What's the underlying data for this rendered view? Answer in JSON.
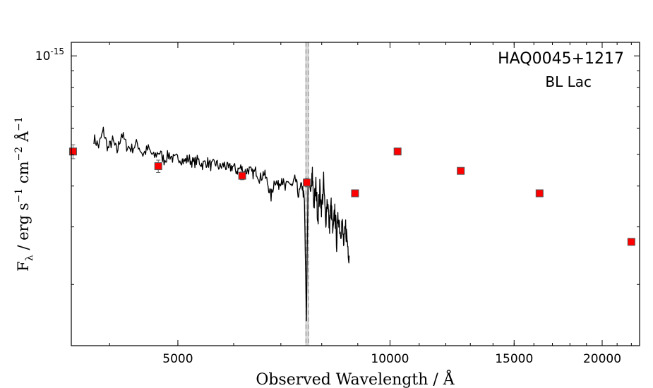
{
  "chart_data": {
    "type": "scatter",
    "title": "HAQ0045+1217",
    "subtitle": "BL Lac",
    "xlabel": "Observed Wavelength / Å",
    "ylabel_parts": {
      "f": "F",
      "lambda": "λ",
      "rest1": " / erg s",
      "exp1": "−1",
      "rest2": " cm",
      "exp2": "−2",
      "rest3": " Å",
      "exp3": "−1"
    },
    "x_scale": "log",
    "y_scale": "log",
    "xlim": [
      3530,
      22600
    ],
    "ylim": [
      1.3e-16,
      1.1e-15
    ],
    "x_ticks": [
      {
        "value": 5000,
        "label": "5000"
      },
      {
        "value": 10000,
        "label": "10000"
      },
      {
        "value": 15000,
        "label": "15000"
      },
      {
        "value": 20000,
        "label": "20000"
      }
    ],
    "y_ticks": [
      {
        "value": 1e-15,
        "label_base": "10",
        "label_exp": "-15"
      }
    ],
    "vertical_band": {
      "x_min": 7580,
      "x_max": 7680,
      "dashed_lines": [
        7600,
        7660
      ],
      "color": "#d9d9d9"
    },
    "series": [
      {
        "kind": "spectrum",
        "color": "#000000",
        "x": [
          3800,
          3860,
          3920,
          3980,
          4040,
          4100,
          4160,
          4230,
          4300,
          4380,
          4460,
          4540,
          4620,
          4700,
          4780,
          4860,
          4940,
          5020,
          5100,
          5180,
          5260,
          5340,
          5420,
          5500,
          5580,
          5660,
          5740,
          5820,
          5900,
          5980,
          6060,
          6140,
          6220,
          6300,
          6380,
          6460,
          6540,
          6620,
          6700,
          6780,
          6860,
          6940,
          7020,
          7100,
          7180,
          7260,
          7340,
          7420,
          7500,
          7560,
          7590,
          7610,
          7630,
          7650,
          7680,
          7720,
          7760,
          7800,
          7850,
          7900,
          7950,
          8000,
          8050,
          8100,
          8150,
          8200,
          8250,
          8300,
          8350,
          8400,
          8450,
          8500,
          8550,
          8600,
          8650,
          8700,
          8750
        ],
        "y": [
          5.6e-16,
          5.3e-16,
          5.9e-16,
          5.2e-16,
          5.5e-16,
          5.1e-16,
          5.8e-16,
          5.3e-16,
          5.2e-16,
          5.4e-16,
          5e-16,
          5.2e-16,
          4.9e-16,
          5.1e-16,
          4.8e-16,
          5e-16,
          4.8e-16,
          4.9e-16,
          4.75e-16,
          4.85e-16,
          4.7e-16,
          4.8e-16,
          4.65e-16,
          4.75e-16,
          4.6e-16,
          4.7e-16,
          4.55e-16,
          4.65e-16,
          4.5e-16,
          4.6e-16,
          4.45e-16,
          4.55e-16,
          4.4e-16,
          4.5e-16,
          4.35e-16,
          4.45e-16,
          4.2e-16,
          4.4e-16,
          4.1e-16,
          3.7e-16,
          4.2e-16,
          4e-16,
          4.25e-16,
          3.9e-16,
          4.15e-16,
          3.95e-16,
          4.2e-16,
          3.75e-16,
          4.05e-16,
          3.6e-16,
          2.2e-16,
          1.55e-16,
          2.6e-16,
          4e-16,
          4.1e-16,
          3.8e-16,
          4.3e-16,
          3.5e-16,
          4e-16,
          3.2e-16,
          3.9e-16,
          3.4e-16,
          4.1e-16,
          3.1e-16,
          3.7e-16,
          3e-16,
          3.5e-16,
          2.8e-16,
          3.4e-16,
          2.7e-16,
          3.3e-16,
          2.9e-16,
          3.1e-16,
          2.6e-16,
          3e-16,
          2.7e-16,
          2.45e-16
        ]
      },
      {
        "kind": "photometry",
        "color": "#ff0000",
        "x": [
          3550,
          4690,
          6170,
          7620,
          8920,
          10250,
          12600,
          16300,
          22000
        ],
        "y": [
          5.1e-16,
          4.6e-16,
          4.3e-16,
          4.1e-16,
          3.8e-16,
          5.1e-16,
          4.45e-16,
          3.8e-16,
          2.7e-16
        ],
        "yerr": [
          2.5e-17,
          2e-17,
          1.2e-17,
          1.2e-17,
          8e-18,
          1e-17,
          8e-18,
          8e-18,
          6e-18
        ]
      }
    ]
  }
}
